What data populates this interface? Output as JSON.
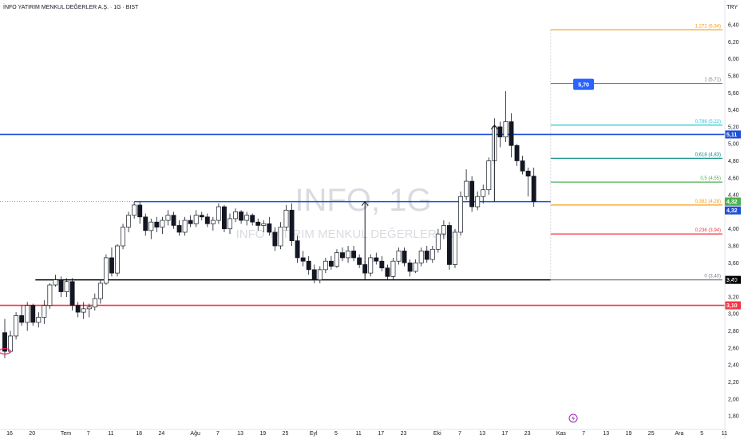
{
  "header": {
    "symbol_title": "İNFO YATIRIM MENKUL DEĞERLER A.Ş. · 1G · BIST",
    "currency": "TRY"
  },
  "watermark": {
    "ticker": "INFO, 1G",
    "name": "INFO YATIRIM MENKUL DEĞERLER A.Ş."
  },
  "icons": {
    "event": "lightning-icon"
  },
  "chart_data": {
    "type": "candlestick",
    "y_ticks": [
      "1,80",
      "2,00",
      "2,20",
      "2,40",
      "2,60",
      "2,80",
      "3,00",
      "3,20",
      "3,40",
      "3,60",
      "3,80",
      "4,00",
      "4,20",
      "4,40",
      "4,60",
      "4,80",
      "5,00",
      "5,20",
      "5,40",
      "5,60",
      "5,80",
      "6,00",
      "6,20",
      "6,40"
    ],
    "ylim": [
      1.66,
      6.56
    ],
    "x_ticks": [
      {
        "label": "16",
        "bar": 0
      },
      {
        "label": "20",
        "bar": 4
      },
      {
        "label": "Tem",
        "bar": 10
      },
      {
        "label": "7",
        "bar": 14
      },
      {
        "label": "11",
        "bar": 18
      },
      {
        "label": "18",
        "bar": 23
      },
      {
        "label": "24",
        "bar": 27
      },
      {
        "label": "Ağu",
        "bar": 33
      },
      {
        "label": "7",
        "bar": 37
      },
      {
        "label": "13",
        "bar": 41
      },
      {
        "label": "19",
        "bar": 45
      },
      {
        "label": "25",
        "bar": 49
      },
      {
        "label": "Eyl",
        "bar": 54
      },
      {
        "label": "5",
        "bar": 58
      },
      {
        "label": "11",
        "bar": 62
      },
      {
        "label": "17",
        "bar": 66
      },
      {
        "label": "23",
        "bar": 70
      },
      {
        "label": "Eki",
        "bar": 76
      },
      {
        "label": "7",
        "bar": 80
      },
      {
        "label": "13",
        "bar": 84
      },
      {
        "label": "17",
        "bar": 88
      },
      {
        "label": "23",
        "bar": 92
      },
      {
        "label": "Kas",
        "bar": 98
      },
      {
        "label": "7",
        "bar": 102
      },
      {
        "label": "13",
        "bar": 106
      },
      {
        "label": "19",
        "bar": 110
      },
      {
        "label": "25",
        "bar": 114
      },
      {
        "label": "Ara",
        "bar": 119
      },
      {
        "label": "5",
        "bar": 123
      },
      {
        "label": "11",
        "bar": 127
      }
    ],
    "candles": [
      [
        2.78,
        2.94,
        2.48,
        2.56
      ],
      [
        2.56,
        2.8,
        2.54,
        2.74
      ],
      [
        2.74,
        3.02,
        2.7,
        2.98
      ],
      [
        2.98,
        3.1,
        2.86,
        2.9
      ],
      [
        2.9,
        3.14,
        2.8,
        3.1
      ],
      [
        3.1,
        3.12,
        2.86,
        2.9
      ],
      [
        2.9,
        3.02,
        2.84,
        2.96
      ],
      [
        2.96,
        3.16,
        2.88,
        3.1
      ],
      [
        3.1,
        3.36,
        3.06,
        3.34
      ],
      [
        3.34,
        3.46,
        3.32,
        3.4
      ],
      [
        3.4,
        3.44,
        3.2,
        3.26
      ],
      [
        3.26,
        3.42,
        3.2,
        3.38
      ],
      [
        3.38,
        3.42,
        3.04,
        3.1
      ],
      [
        3.1,
        3.14,
        2.96,
        3.02
      ],
      [
        3.02,
        3.14,
        2.94,
        3.06
      ],
      [
        3.06,
        3.12,
        2.96,
        3.08
      ],
      [
        3.08,
        3.24,
        3.04,
        3.18
      ],
      [
        3.18,
        3.4,
        3.12,
        3.36
      ],
      [
        3.36,
        3.7,
        3.34,
        3.66
      ],
      [
        3.66,
        3.78,
        3.44,
        3.48
      ],
      [
        3.48,
        3.82,
        3.44,
        3.8
      ],
      [
        3.8,
        4.06,
        3.76,
        4.02
      ],
      [
        4.02,
        4.2,
        3.96,
        4.16
      ],
      [
        4.16,
        4.32,
        4.12,
        4.28
      ],
      [
        4.28,
        4.32,
        4.06,
        4.14
      ],
      [
        4.14,
        4.18,
        3.92,
        3.98
      ],
      [
        3.98,
        4.12,
        3.88,
        4.08
      ],
      [
        4.08,
        4.14,
        3.96,
        4.02
      ],
      [
        4.02,
        4.14,
        3.94,
        4.1
      ],
      [
        4.1,
        4.22,
        4.04,
        4.16
      ],
      [
        4.16,
        4.2,
        4.0,
        4.04
      ],
      [
        4.04,
        4.1,
        3.92,
        3.96
      ],
      [
        3.96,
        4.14,
        3.92,
        4.1
      ],
      [
        4.1,
        4.16,
        4.02,
        4.06
      ],
      [
        4.06,
        4.22,
        4.02,
        4.16
      ],
      [
        4.16,
        4.2,
        4.1,
        4.14
      ],
      [
        4.14,
        4.18,
        4.02,
        4.06
      ],
      [
        4.06,
        4.14,
        3.98,
        4.1
      ],
      [
        4.1,
        4.3,
        4.06,
        4.26
      ],
      [
        4.26,
        4.28,
        3.96,
        4.0
      ],
      [
        4.0,
        4.18,
        3.94,
        4.12
      ],
      [
        4.12,
        4.24,
        4.08,
        4.2
      ],
      [
        4.2,
        4.22,
        4.06,
        4.1
      ],
      [
        4.1,
        4.2,
        4.04,
        4.16
      ],
      [
        4.16,
        4.18,
        4.04,
        4.08
      ],
      [
        4.08,
        4.12,
        3.98,
        4.04
      ],
      [
        4.04,
        4.1,
        3.96,
        4.06
      ],
      [
        4.06,
        4.14,
        3.92,
        3.96
      ],
      [
        3.96,
        4.02,
        3.74,
        3.8
      ],
      [
        3.8,
        4.08,
        3.76,
        4.02
      ],
      [
        4.02,
        4.28,
        3.98,
        4.22
      ],
      [
        4.22,
        4.3,
        3.8,
        3.86
      ],
      [
        3.86,
        3.92,
        3.6,
        3.66
      ],
      [
        3.66,
        3.74,
        3.56,
        3.62
      ],
      [
        3.62,
        3.68,
        3.46,
        3.52
      ],
      [
        3.52,
        3.58,
        3.36,
        3.4
      ],
      [
        3.4,
        3.56,
        3.36,
        3.52
      ],
      [
        3.52,
        3.66,
        3.48,
        3.62
      ],
      [
        3.62,
        3.68,
        3.52,
        3.56
      ],
      [
        3.56,
        3.76,
        3.54,
        3.72
      ],
      [
        3.72,
        3.78,
        3.62,
        3.66
      ],
      [
        3.66,
        3.8,
        3.6,
        3.74
      ],
      [
        3.74,
        3.8,
        3.62,
        3.66
      ],
      [
        3.66,
        3.7,
        3.54,
        3.58
      ],
      [
        3.58,
        3.62,
        3.44,
        3.48
      ],
      [
        3.48,
        3.7,
        3.44,
        3.66
      ],
      [
        3.66,
        3.72,
        3.58,
        3.62
      ],
      [
        3.62,
        3.68,
        3.5,
        3.54
      ],
      [
        3.54,
        3.58,
        3.4,
        3.44
      ],
      [
        3.44,
        3.66,
        3.4,
        3.62
      ],
      [
        3.62,
        3.78,
        3.58,
        3.74
      ],
      [
        3.74,
        3.78,
        3.56,
        3.6
      ],
      [
        3.6,
        3.64,
        3.44,
        3.5
      ],
      [
        3.5,
        3.64,
        3.48,
        3.6
      ],
      [
        3.6,
        3.78,
        3.56,
        3.74
      ],
      [
        3.74,
        3.8,
        3.6,
        3.64
      ],
      [
        3.64,
        3.8,
        3.6,
        3.76
      ],
      [
        3.76,
        4.0,
        3.72,
        3.94
      ],
      [
        3.94,
        4.1,
        3.88,
        4.04
      ],
      [
        4.04,
        4.08,
        3.52,
        3.58
      ],
      [
        3.58,
        4.0,
        3.54,
        3.96
      ],
      [
        3.96,
        4.44,
        3.92,
        4.38
      ],
      [
        4.38,
        4.7,
        4.34,
        4.56
      ],
      [
        4.56,
        4.62,
        4.2,
        4.26
      ],
      [
        4.26,
        4.44,
        4.22,
        4.38
      ],
      [
        4.38,
        4.52,
        4.3,
        4.46
      ],
      [
        4.46,
        4.84,
        4.4,
        4.8
      ],
      [
        4.8,
        5.3,
        4.76,
        5.2
      ],
      [
        5.2,
        5.26,
        4.96,
        5.08
      ],
      [
        5.08,
        5.62,
        5.02,
        5.26
      ],
      [
        5.26,
        5.36,
        4.84,
        4.98
      ],
      [
        4.98,
        5.0,
        4.74,
        4.8
      ],
      [
        4.8,
        4.86,
        4.64,
        4.68
      ],
      [
        4.68,
        4.72,
        4.38,
        4.62
      ],
      [
        4.62,
        4.72,
        4.26,
        4.32
      ]
    ],
    "reference_lines": [
      {
        "price": 5.11,
        "color": "#1e4fd8",
        "label": "5,11"
      },
      {
        "price": 4.32,
        "color": "#1e4fd8",
        "label": "4,32"
      },
      {
        "price": 3.4,
        "color": "#000000",
        "label": "3,40"
      },
      {
        "price": 3.1,
        "color": "#f23645",
        "label": "3,10"
      }
    ],
    "fibonacci": [
      {
        "ratio": "1.272",
        "price": 6.34,
        "label": "1,272 (6,34)",
        "color": "#f59d0d"
      },
      {
        "ratio": "1",
        "price": 5.71,
        "label": "1 (5,71)",
        "color": "#787b86"
      },
      {
        "ratio": "0.786",
        "price": 5.22,
        "label": "0,786 (5,22)",
        "color": "#26c6da"
      },
      {
        "ratio": "0.618",
        "price": 4.83,
        "label": "0,618 (4,83)",
        "color": "#00897b"
      },
      {
        "ratio": "0.5",
        "price": 4.55,
        "label": "0,5 (4,55)",
        "color": "#4caf50"
      },
      {
        "ratio": "0.382",
        "price": 4.28,
        "label": "0,382 (4,28)",
        "color": "#f59d0d"
      },
      {
        "ratio": "0.236",
        "price": 3.94,
        "label": "0,236 (3,94)",
        "color": "#f23645"
      },
      {
        "ratio": "0",
        "price": 3.4,
        "label": "0 (3,40)",
        "color": "#787b86"
      }
    ],
    "price_tags": [
      {
        "price": 4.32,
        "label": "4,32",
        "color": "#4caf50"
      },
      {
        "price": 4.32,
        "label": "4,32",
        "color": "#1e4fd8",
        "offset": 1
      }
    ],
    "callout": {
      "label": "5,70",
      "price": 5.7,
      "bar": 101,
      "color": "#2962ff"
    },
    "arrows": [
      {
        "bar": 64,
        "from": 3.4,
        "to": 4.32
      },
      {
        "bar": 87,
        "from": 4.32,
        "to": 5.22
      }
    ],
    "range_start_bar": 6,
    "support_start_bar": 23
  }
}
